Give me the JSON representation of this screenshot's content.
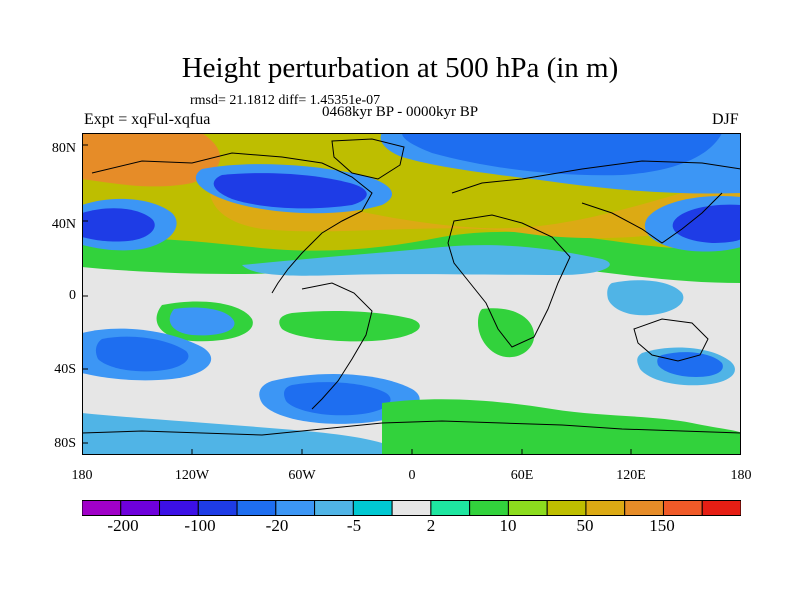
{
  "title": "Height perturbation at 500 hPa (in m)",
  "stats": "rmsd= 21.1812 diff= 1.45351e-07",
  "period": "0468kyr BP - 0000kyr BP",
  "experiment": "Expt = xqFul-xqfua",
  "season": "DJF",
  "y_ticks": [
    "80N",
    "40N",
    "0",
    "40S",
    "80S"
  ],
  "x_ticks": [
    "180",
    "120W",
    "60W",
    "0",
    "60E",
    "120E",
    "180"
  ],
  "colorbar": {
    "colors": [
      "#a000c8",
      "#6e00dc",
      "#3c10e6",
      "#1e3ce6",
      "#1e6ef0",
      "#3c96f5",
      "#50b4e6",
      "#00c8d2",
      "#e6e6e6",
      "#1ee6a0",
      "#32d23c",
      "#8cdc1e",
      "#bebe00",
      "#dcaa14",
      "#e68c28",
      "#f05a28",
      "#e61e14"
    ],
    "labels": [
      "-200",
      "-100",
      "-20",
      "-5",
      "2",
      "10",
      "50",
      "150"
    ]
  }
}
